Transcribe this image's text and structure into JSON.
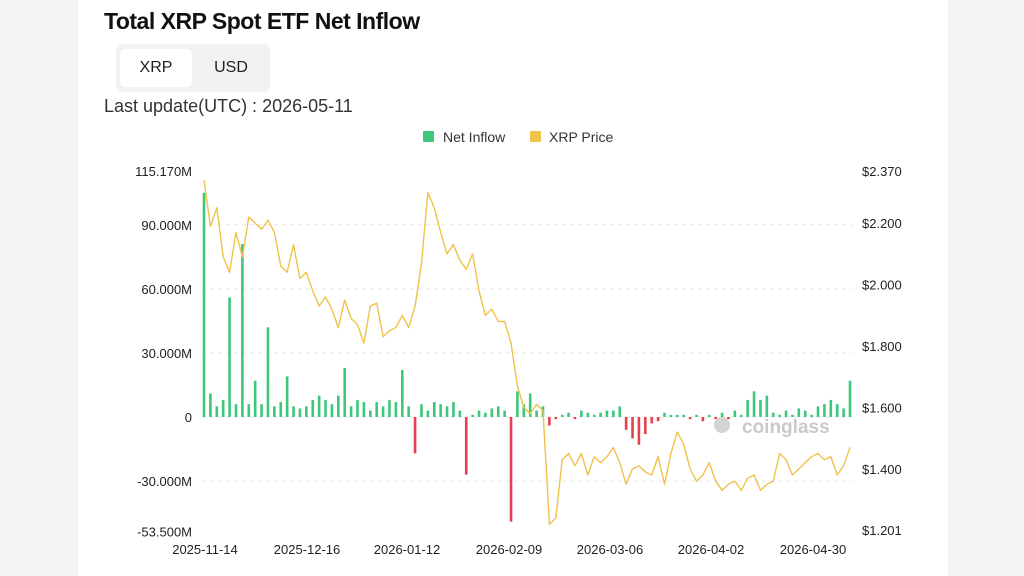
{
  "title": "Total XRP Spot ETF Net Inflow",
  "toggle": {
    "options": [
      "XRP",
      "USD"
    ],
    "selected": "XRP"
  },
  "last_update": "Last update(UTC) : 2026-05-11",
  "watermark": "coinglass",
  "chart_data": {
    "type": "bar",
    "title": "Total XRP Spot ETF Net Inflow",
    "legend": [
      "Net Inflow",
      "XRP Price"
    ],
    "legend_position": "top-center",
    "colors": {
      "positive": "#3ec77a",
      "negative": "#e5414c",
      "price": "#f0c24a"
    },
    "x_tick_labels": [
      "2025-11-14",
      "2025-12-16",
      "2026-01-12",
      "2026-02-09",
      "2026-03-06",
      "2026-04-02",
      "2026-04-30"
    ],
    "y_left_ticks": [
      "115.170M",
      "90.000M",
      "60.000M",
      "30.000M",
      "0",
      "-30.000M",
      "-53.500M"
    ],
    "y_right_ticks": [
      "$2.370",
      "$2.200",
      "$2.000",
      "$1.800",
      "$1.600",
      "$1.400",
      "$1.201"
    ],
    "y_left_range": [
      -53.5,
      115.17
    ],
    "y_right_range": [
      1.201,
      2.37
    ],
    "units": {
      "net_inflow": "M XRP",
      "price": "USD"
    },
    "net_inflow": [
      105,
      11,
      5,
      8,
      56,
      6,
      81,
      6,
      17,
      6,
      42,
      5,
      7,
      19,
      5,
      4,
      5,
      8,
      10,
      8,
      6,
      10,
      23,
      5,
      8,
      7,
      3,
      7,
      5,
      8,
      7,
      22,
      5,
      -17,
      6,
      3,
      7,
      6,
      5,
      7,
      3,
      -27,
      1,
      3,
      2,
      4,
      5,
      3,
      -49,
      12,
      6,
      11,
      3,
      5,
      -4,
      -1,
      1,
      2,
      -1,
      3,
      2,
      1,
      2,
      3,
      3,
      5,
      -6,
      -10,
      -13,
      -8,
      -3,
      -2,
      2,
      1,
      1,
      1,
      -1,
      1,
      -2,
      1,
      -1,
      2,
      -1,
      3,
      1,
      8,
      12,
      8,
      10,
      2,
      1,
      3,
      1,
      4,
      3,
      1,
      5,
      6,
      8,
      6,
      4,
      17
    ],
    "xrp_price": [
      2.34,
      2.19,
      2.25,
      2.09,
      2.04,
      2.17,
      2.09,
      2.22,
      2.2,
      2.18,
      2.21,
      2.17,
      2.06,
      2.04,
      2.13,
      2.02,
      2.04,
      1.98,
      1.93,
      1.96,
      1.92,
      1.86,
      1.95,
      1.89,
      1.87,
      1.81,
      1.93,
      1.94,
      1.83,
      1.85,
      1.86,
      1.9,
      1.86,
      1.93,
      2.07,
      2.3,
      2.25,
      2.17,
      2.1,
      2.13,
      2.08,
      2.05,
      2.1,
      1.98,
      1.9,
      1.92,
      1.88,
      1.88,
      1.81,
      1.67,
      1.6,
      1.58,
      1.61,
      1.59,
      1.22,
      1.24,
      1.43,
      1.45,
      1.41,
      1.45,
      1.38,
      1.44,
      1.42,
      1.44,
      1.47,
      1.42,
      1.35,
      1.4,
      1.41,
      1.39,
      1.38,
      1.44,
      1.35,
      1.45,
      1.52,
      1.48,
      1.4,
      1.36,
      1.38,
      1.42,
      1.36,
      1.33,
      1.35,
      1.36,
      1.33,
      1.37,
      1.38,
      1.33,
      1.35,
      1.36,
      1.45,
      1.43,
      1.38,
      1.4,
      1.42,
      1.44,
      1.45,
      1.43,
      1.44,
      1.38,
      1.41,
      1.47
    ]
  }
}
